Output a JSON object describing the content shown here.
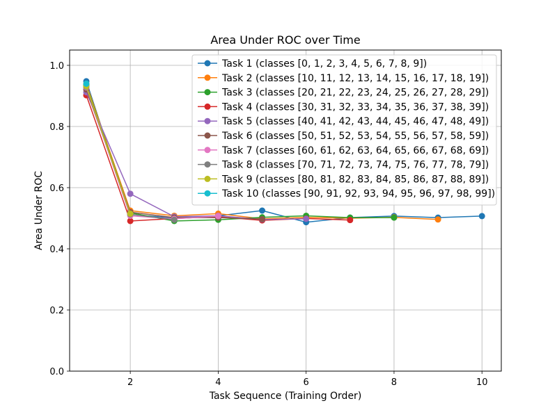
{
  "chart_data": {
    "type": "line",
    "title": "Area Under ROC over Time",
    "xlabel": "Task Sequence (Training Order)",
    "ylabel": "Area Under ROC",
    "xlim": [
      0.62,
      10.44
    ],
    "ylim": [
      0.0,
      1.05
    ],
    "xticks": [
      2,
      4,
      6,
      8,
      10
    ],
    "yticks": [
      0.0,
      0.2,
      0.4,
      0.6,
      0.8,
      1.0
    ],
    "xtick_labels": [
      "2",
      "4",
      "6",
      "8",
      "10"
    ],
    "ytick_labels": [
      "0.0",
      "0.2",
      "0.4",
      "0.6",
      "0.8",
      "1.0"
    ],
    "grid": true,
    "legend_position": "top-right",
    "series": [
      {
        "name": "Task 1 (classes [0, 1, 2, 3, 4, 5, 6, 7, 8, 9])",
        "color": "#1f77b4",
        "x": [
          1,
          2,
          3,
          4,
          5,
          6,
          7,
          8,
          9,
          10
        ],
        "values": [
          0.948,
          0.512,
          0.501,
          0.508,
          0.525,
          0.487,
          0.502,
          0.507,
          0.502,
          0.507
        ]
      },
      {
        "name": "Task 2 (classes [10, 11, 12, 13, 14, 15, 16, 17, 18, 19])",
        "color": "#ff7f0e",
        "x": [
          1,
          2,
          3,
          4,
          5,
          6,
          7,
          8,
          9
        ],
        "values": [
          0.94,
          0.525,
          0.508,
          0.515,
          0.498,
          0.503,
          0.5,
          0.503,
          0.496
        ]
      },
      {
        "name": "Task 3 (classes [20, 21, 22, 23, 24, 25, 26, 27, 28, 29])",
        "color": "#2ca02c",
        "x": [
          1,
          2,
          3,
          4,
          5,
          6,
          7,
          8
        ],
        "values": [
          0.935,
          0.518,
          0.491,
          0.495,
          0.503,
          0.508,
          0.502,
          0.502
        ]
      },
      {
        "name": "Task 4 (classes [30, 31, 32, 33, 34, 35, 36, 37, 38, 39])",
        "color": "#d62728",
        "x": [
          1,
          2,
          3,
          4,
          5,
          6,
          7
        ],
        "values": [
          0.902,
          0.491,
          0.499,
          0.505,
          0.493,
          0.499,
          0.494
        ]
      },
      {
        "name": "Task 5 (classes [40, 41, 42, 43, 44, 45, 46, 47, 48, 49])",
        "color": "#9467bd",
        "x": [
          1,
          2,
          3,
          4,
          5,
          6
        ],
        "values": [
          0.912,
          0.58,
          0.505,
          0.508,
          0.496,
          0.498
        ]
      },
      {
        "name": "Task 6 (classes [50, 51, 52, 53, 54, 55, 56, 57, 58, 59])",
        "color": "#8c564b",
        "x": [
          1,
          2,
          3,
          4,
          5
        ],
        "values": [
          0.921,
          0.52,
          0.502,
          0.502,
          0.497
        ]
      },
      {
        "name": "Task 7 (classes [60, 61, 62, 63, 64, 65, 66, 67, 68, 69])",
        "color": "#e377c2",
        "x": [
          1,
          2,
          3,
          4
        ],
        "values": [
          0.928,
          0.508,
          0.498,
          0.507
        ]
      },
      {
        "name": "Task 8 (classes [70, 71, 72, 73, 74, 75, 76, 77, 78, 79])",
        "color": "#7f7f7f",
        "x": [
          1,
          2,
          3
        ],
        "values": [
          0.93,
          0.513,
          0.495
        ]
      },
      {
        "name": "Task 9 (classes [80, 81, 82, 83, 84, 85, 86, 87, 88, 89])",
        "color": "#bcbd22",
        "x": [
          1,
          2
        ],
        "values": [
          0.932,
          0.515
        ]
      },
      {
        "name": "Task 10 (classes [90, 91, 92, 93, 94, 95, 96, 97, 98, 99])",
        "color": "#17becf",
        "x": [
          1
        ],
        "values": [
          0.94
        ]
      }
    ]
  }
}
